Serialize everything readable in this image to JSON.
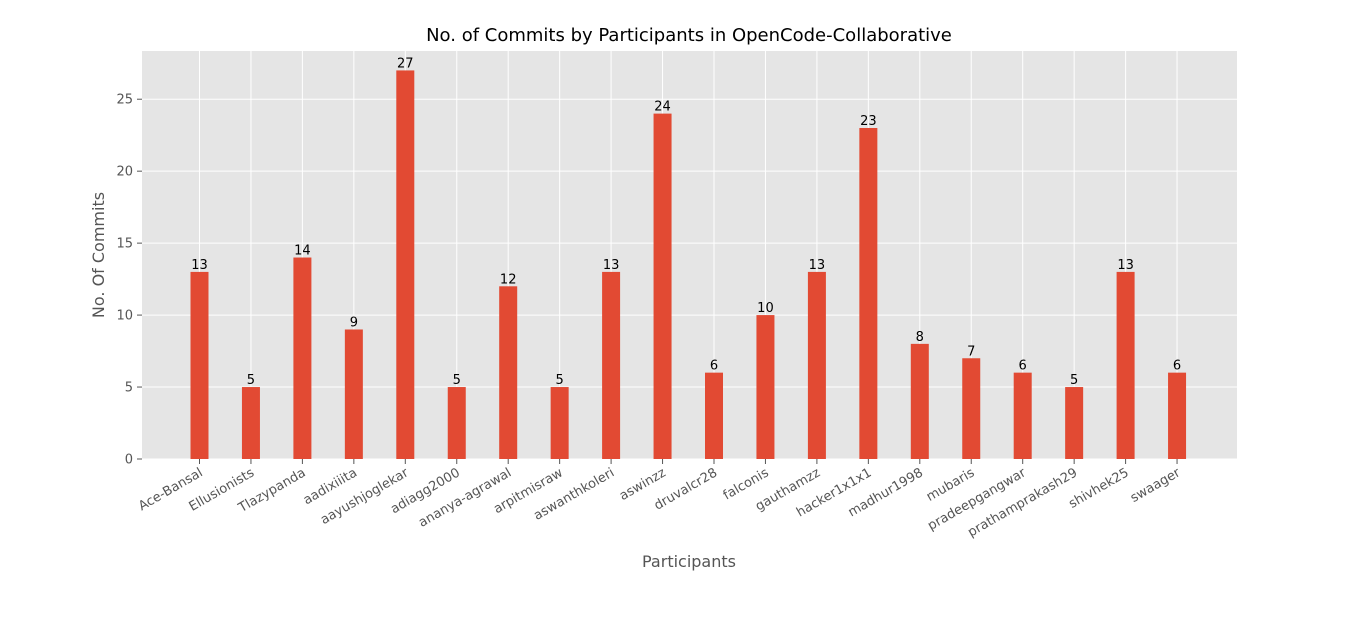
{
  "chart_data": {
    "type": "bar",
    "title": "No. of Commits by Participants in OpenCode-Collaborative",
    "xlabel": "Participants",
    "ylabel": "No. Of Commits",
    "ylim": [
      0,
      28.35
    ],
    "yticks": [
      0,
      5,
      10,
      15,
      20,
      25
    ],
    "grid": true,
    "bar_color": "#E24A33",
    "background_color": "#E5E5E5",
    "categories": [
      "Ace-Bansal",
      "Ellusionists",
      "Tlazypanda",
      "aadixiiita",
      "aayushjoglekar",
      "adiagg2000",
      "ananya-agrawal",
      "arpitmisraw",
      "aswanthkoleri",
      "aswinzz",
      "druvalcr28",
      "falconis",
      "gauthamzz",
      "hacker1x1x1",
      "madhur1998",
      "mubaris",
      "pradeepgangwar",
      "prathamprakash29",
      "shivhek25",
      "swaager"
    ],
    "values": [
      13,
      5,
      14,
      9,
      27,
      5,
      12,
      5,
      13,
      24,
      6,
      10,
      13,
      23,
      8,
      7,
      6,
      5,
      13,
      6
    ]
  }
}
